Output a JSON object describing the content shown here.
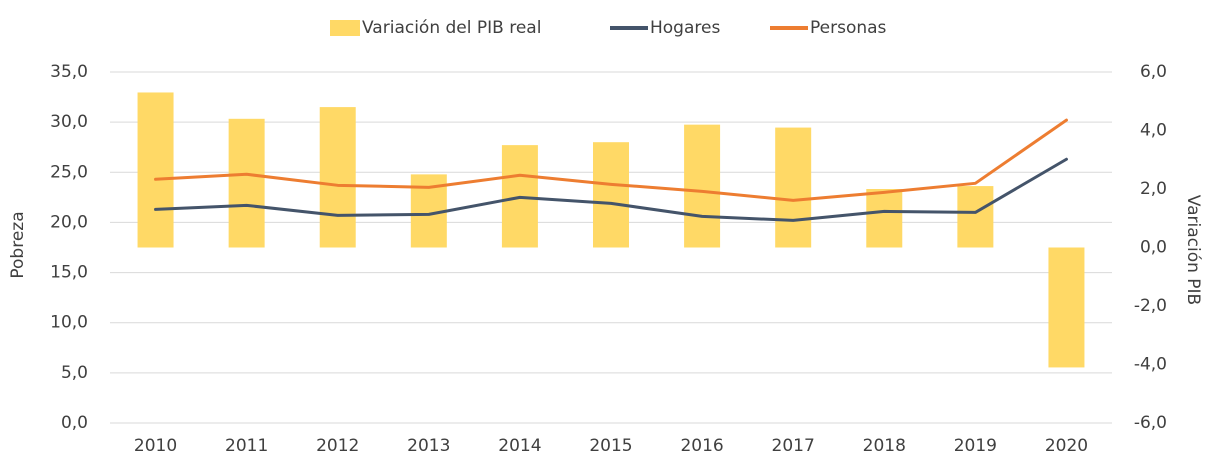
{
  "chart_data": {
    "type": "bar-line",
    "categories": [
      "2010",
      "2011",
      "2012",
      "2013",
      "2014",
      "2015",
      "2016",
      "2017",
      "2018",
      "2019",
      "2020"
    ],
    "series": [
      {
        "name": "Variación del PIB real",
        "type": "bar",
        "axis": "y2",
        "color": "#ffd966",
        "values": [
          5.3,
          4.4,
          4.8,
          2.5,
          3.5,
          3.6,
          4.2,
          4.1,
          2.0,
          2.1,
          -4.1
        ]
      },
      {
        "name": "Hogares",
        "type": "line",
        "axis": "y",
        "color": "#44546a",
        "values": [
          21.3,
          21.7,
          20.7,
          20.8,
          22.5,
          21.9,
          20.6,
          20.2,
          21.1,
          21.0,
          26.3
        ]
      },
      {
        "name": "Personas",
        "type": "line",
        "axis": "y",
        "color": "#ed7d31",
        "values": [
          24.3,
          24.8,
          23.7,
          23.5,
          24.7,
          23.8,
          23.1,
          22.2,
          23.0,
          23.9,
          30.2
        ]
      }
    ],
    "ylabel": "Pobreza",
    "y2label": "Variación PIB",
    "ylim": [
      0,
      35
    ],
    "yticks": [
      {
        "value": 0,
        "label": "0,0"
      },
      {
        "value": 5,
        "label": "5,0"
      },
      {
        "value": 10,
        "label": "10,0"
      },
      {
        "value": 15,
        "label": "15,0"
      },
      {
        "value": 20,
        "label": "20,0"
      },
      {
        "value": 25,
        "label": "25,0"
      },
      {
        "value": 30,
        "label": "30,0"
      },
      {
        "value": 35,
        "label": "35,0"
      }
    ],
    "y2lim": [
      -6,
      6
    ],
    "y2ticks": [
      {
        "value": -6,
        "label": "-6,0"
      },
      {
        "value": -4,
        "label": "-4,0"
      },
      {
        "value": -2,
        "label": "-2,0"
      },
      {
        "value": 0,
        "label": "0,0"
      },
      {
        "value": 2,
        "label": "2,0"
      },
      {
        "value": 4,
        "label": "4,0"
      },
      {
        "value": 6,
        "label": "6,0"
      }
    ],
    "grid": true,
    "legend": "top"
  }
}
